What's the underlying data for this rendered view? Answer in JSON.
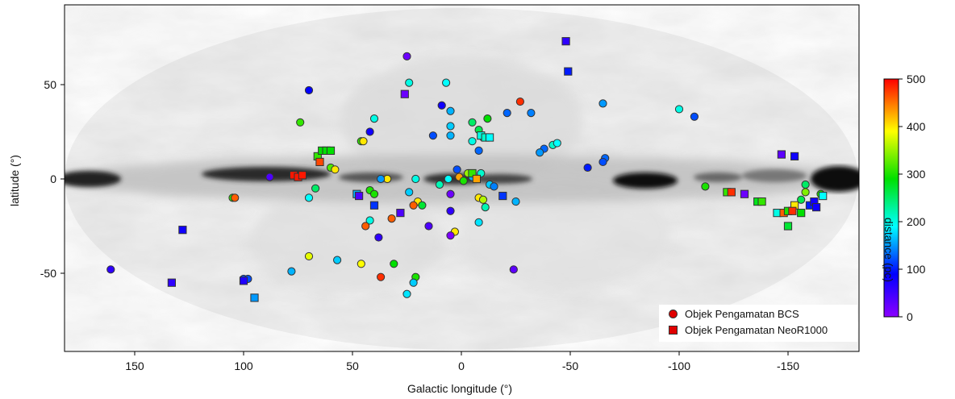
{
  "chart_data": {
    "type": "scatter",
    "xlabel": "Galactic longitude (°)",
    "ylabel": "latitude (°)",
    "xlim": [
      180,
      -180
    ],
    "ylim": [
      -90,
      90
    ],
    "xticks": [
      150,
      100,
      50,
      0,
      -50,
      -100,
      -150
    ],
    "yticks": [
      50,
      0,
      -50
    ],
    "colorbar": {
      "label": "distance (pc)",
      "range": [
        0,
        500
      ],
      "ticks": [
        500,
        400,
        300,
        200,
        100,
        0
      ],
      "colormap": "rainbow"
    },
    "legend": {
      "position": "bottom-right",
      "entries": [
        {
          "label": "Objek Pengamatan BCS",
          "marker": "circle",
          "color": "#e00000"
        },
        {
          "label": "Objek Pengamatan NeoR1000",
          "marker": "square",
          "color": "#e00000"
        }
      ]
    },
    "series": [
      {
        "name": "Objek Pengamatan BCS",
        "marker": "circle",
        "points": [
          [
            25,
            65,
            20
          ],
          [
            70,
            47,
            90
          ],
          [
            -27,
            41,
            480
          ],
          [
            24,
            51,
            200
          ],
          [
            7,
            51,
            190
          ],
          [
            -32,
            35,
            140
          ],
          [
            -65,
            40,
            150
          ],
          [
            -100,
            37,
            200
          ],
          [
            -107,
            33,
            120
          ],
          [
            40,
            32,
            200
          ],
          [
            5,
            36,
            160
          ],
          [
            9,
            39,
            80
          ],
          [
            -12,
            32,
            290
          ],
          [
            -21,
            35,
            130
          ],
          [
            -5,
            30,
            250
          ],
          [
            42,
            25,
            80
          ],
          [
            74,
            30,
            310
          ],
          [
            46,
            20,
            310
          ],
          [
            45,
            20,
            400
          ],
          [
            -42,
            18,
            210
          ],
          [
            -44,
            19,
            190
          ],
          [
            5,
            28,
            170
          ],
          [
            -8,
            26,
            260
          ],
          [
            -10,
            22,
            210
          ],
          [
            5,
            23,
            160
          ],
          [
            -5,
            20,
            200
          ],
          [
            -8,
            15,
            130
          ],
          [
            -38,
            16,
            130
          ],
          [
            -36,
            14,
            150
          ],
          [
            -58,
            6,
            100
          ],
          [
            -66,
            11,
            130
          ],
          [
            -65,
            9,
            120
          ],
          [
            13,
            23,
            120
          ],
          [
            60,
            6,
            320
          ],
          [
            58,
            5,
            400
          ],
          [
            34,
            0,
            400
          ],
          [
            21,
            0,
            200
          ],
          [
            6,
            0,
            190
          ],
          [
            2,
            5,
            120
          ],
          [
            1,
            1,
            430
          ],
          [
            -1,
            -1,
            300
          ],
          [
            -5,
            1,
            160
          ],
          [
            -3,
            3,
            350
          ],
          [
            -9,
            3,
            210
          ],
          [
            10,
            -3,
            220
          ],
          [
            -13,
            -3,
            170
          ],
          [
            -15,
            -4,
            140
          ],
          [
            -25,
            -12,
            160
          ],
          [
            -8,
            -10,
            400
          ],
          [
            -11,
            -15,
            220
          ],
          [
            67,
            -5,
            250
          ],
          [
            70,
            -10,
            190
          ],
          [
            42,
            -6,
            300
          ],
          [
            40,
            -8,
            300
          ],
          [
            20,
            -12,
            400
          ],
          [
            18,
            -14,
            270
          ],
          [
            22,
            -14,
            460
          ],
          [
            24,
            -7,
            170
          ],
          [
            42,
            -22,
            200
          ],
          [
            44,
            -25,
            460
          ],
          [
            38,
            -31,
            60
          ],
          [
            32,
            -21,
            460
          ],
          [
            15,
            -25,
            40
          ],
          [
            5,
            -17,
            60
          ],
          [
            3,
            -28,
            400
          ],
          [
            5,
            -8,
            20
          ],
          [
            -8,
            -23,
            180
          ],
          [
            5,
            -30,
            10
          ],
          [
            31,
            -45,
            290
          ],
          [
            46,
            -45,
            390
          ],
          [
            37,
            -52,
            480
          ],
          [
            21,
            -52,
            300
          ],
          [
            22,
            -55,
            170
          ],
          [
            25,
            -61,
            180
          ],
          [
            57,
            -43,
            170
          ],
          [
            70,
            -41,
            380
          ],
          [
            78,
            -49,
            160
          ],
          [
            100,
            -53,
            120
          ],
          [
            98,
            -53,
            120
          ],
          [
            161,
            -48,
            60
          ],
          [
            -24,
            -48,
            30
          ],
          [
            105,
            -10,
            310
          ],
          [
            104,
            -10,
            460
          ],
          [
            -156,
            -11,
            260
          ],
          [
            -158,
            -7,
            340
          ],
          [
            -158,
            -3,
            250
          ],
          [
            -165,
            -8,
            300
          ],
          [
            -112,
            -4,
            300
          ],
          [
            88,
            1,
            40
          ],
          [
            37,
            0,
            150
          ],
          [
            -10,
            -11,
            360
          ]
        ]
      },
      {
        "name": "Objek Pengamatan NeoR1000",
        "marker": "square",
        "points": [
          [
            -48,
            73,
            60
          ],
          [
            -49,
            57,
            100
          ],
          [
            26,
            45,
            20
          ],
          [
            66,
            12,
            310
          ],
          [
            64,
            15,
            290
          ],
          [
            62,
            15,
            290
          ],
          [
            60,
            15,
            290
          ],
          [
            -9,
            23,
            200
          ],
          [
            -11,
            22,
            210
          ],
          [
            -13,
            22,
            190
          ],
          [
            -147,
            13,
            30
          ],
          [
            -153,
            12,
            80
          ],
          [
            65,
            9,
            470
          ],
          [
            77,
            2,
            490
          ],
          [
            75,
            1,
            490
          ],
          [
            73,
            2,
            490
          ],
          [
            -5,
            3,
            310
          ],
          [
            -7,
            0,
            430
          ],
          [
            48,
            -8,
            160
          ],
          [
            47,
            -9,
            40
          ],
          [
            40,
            -14,
            110
          ],
          [
            28,
            -18,
            40
          ],
          [
            -19,
            -9,
            110
          ],
          [
            -122,
            -7,
            310
          ],
          [
            -124,
            -7,
            480
          ],
          [
            -130,
            -8,
            20
          ],
          [
            -136,
            -12,
            280
          ],
          [
            -138,
            -12,
            310
          ],
          [
            -145,
            -18,
            200
          ],
          [
            -150,
            -25,
            270
          ],
          [
            -148,
            -18,
            460
          ],
          [
            -150,
            -17,
            300
          ],
          [
            -153,
            -14,
            400
          ],
          [
            -156,
            -18,
            290
          ],
          [
            -160,
            -14,
            100
          ],
          [
            -162,
            -12,
            80
          ],
          [
            -163,
            -15,
            80
          ],
          [
            -166,
            -9,
            190
          ],
          [
            -152,
            -17,
            480
          ],
          [
            128,
            -27,
            80
          ],
          [
            133,
            -55,
            60
          ],
          [
            100,
            -54,
            70
          ],
          [
            95,
            -63,
            150
          ]
        ]
      }
    ]
  }
}
